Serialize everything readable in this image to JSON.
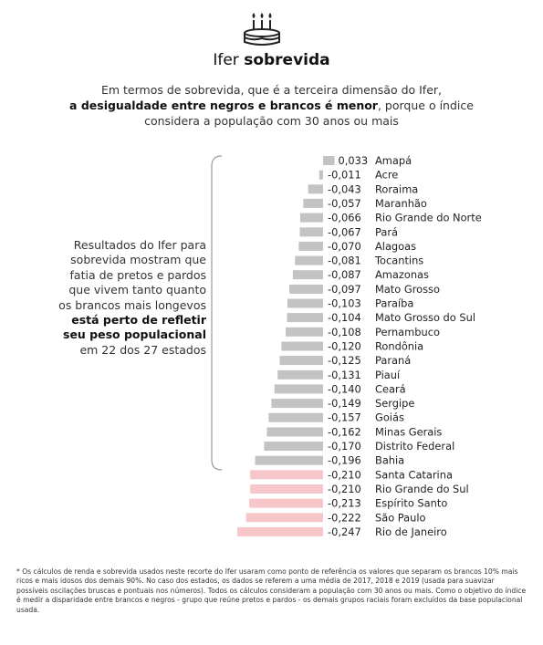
{
  "header": {
    "icon": "birthday-cake-icon",
    "title_prefix": "Ifer ",
    "title_bold": "sobrevida"
  },
  "intro": {
    "part1": "Em termos de sobrevida, que é a terceira dimensão do Ifer,",
    "bold": "a desigualdade entre negros e brancos é menor",
    "part2": ", porque o índice considera a população com 30 anos ou mais"
  },
  "side_note": {
    "part1": "Resultados do Ifer para sobrevida mostram que fatia de pretos e pardos que vivem tanto quanto os brancos mais longevos ",
    "bold1": "está perto de refletir seu peso populacional",
    "part2": " em 22 dos 27 estados"
  },
  "chart_data": {
    "type": "bar",
    "orientation": "horizontal",
    "categories": [
      "Amapá",
      "Acre",
      "Roraima",
      "Maranhão",
      "Rio Grande do Norte",
      "Pará",
      "Alagoas",
      "Tocantins",
      "Amazonas",
      "Mato Grosso",
      "Paraíba",
      "Mato Grosso do Sul",
      "Pernambuco",
      "Rondônia",
      "Paraná",
      "Piauí",
      "Ceará",
      "Sergipe",
      "Goiás",
      "Minas Gerais",
      "Distrito Federal",
      "Bahia",
      "Santa Catarina",
      "Rio Grande do Sul",
      "Espírito Santo",
      "São Paulo",
      "Rio de Janeiro"
    ],
    "values": [
      0.033,
      -0.011,
      -0.043,
      -0.057,
      -0.066,
      -0.067,
      -0.07,
      -0.081,
      -0.087,
      -0.097,
      -0.103,
      -0.104,
      -0.108,
      -0.12,
      -0.125,
      -0.131,
      -0.14,
      -0.149,
      -0.157,
      -0.162,
      -0.17,
      -0.196,
      -0.21,
      -0.21,
      -0.213,
      -0.222,
      -0.247
    ],
    "value_labels": [
      "0,033",
      "-0,011",
      "-0,043",
      "-0,057",
      "-0,066",
      "-0,067",
      "-0,070",
      "-0,081",
      "-0,087",
      "-0,097",
      "-0,103",
      "-0,104",
      "-0,108",
      "-0,120",
      "-0,125",
      "-0,131",
      "-0,140",
      "-0,149",
      "-0,157",
      "-0,162",
      "-0,170",
      "-0,196",
      "-0,210",
      "-0,210",
      "-0,213",
      "-0,222",
      "-0,247"
    ],
    "highlight_from_index": 22,
    "colors": {
      "default": "#c3c3c3",
      "highlight": "#f7c6c9"
    }
  },
  "footnote": "* Os cálculos de renda e sobrevida usados neste recorte do Ifer usaram como ponto de referência os valores que separam os brancos 10% mais ricos e mais idosos dos demais 90%. No caso dos estados, os dados se referem a uma média de 2017, 2018 e 2019 (usada para suavizar possíveis oscilações bruscas e pontuais nos números). Todos os cálculos consideram a população com 30 anos ou mais. Como o objetivo do índice é medir a disparidade entre brancos e negros - grupo que reúne pretos e pardos - os demais grupos raciais foram excluídos da base populacional usada."
}
